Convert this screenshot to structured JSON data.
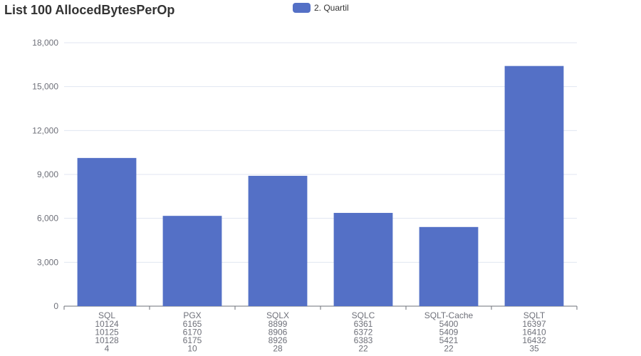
{
  "chart_data": {
    "type": "bar",
    "title": "List 100 AllocedBytesPerOp",
    "series": [
      {
        "name": "2. Quartil",
        "values": [
          10125,
          6170,
          8906,
          6372,
          5409,
          16410
        ]
      }
    ],
    "categories": [
      {
        "name": "SQL",
        "lines": [
          "10124",
          "10125",
          "10128",
          "4"
        ]
      },
      {
        "name": "PGX",
        "lines": [
          "6165",
          "6170",
          "6175",
          "10"
        ]
      },
      {
        "name": "SQLX",
        "lines": [
          "8899",
          "8906",
          "8926",
          "28"
        ]
      },
      {
        "name": "SQLC",
        "lines": [
          "6361",
          "6372",
          "6383",
          "22"
        ]
      },
      {
        "name": "SQLT-Cache",
        "lines": [
          "5400",
          "5409",
          "5421",
          "22"
        ]
      },
      {
        "name": "SQLT",
        "lines": [
          "16397",
          "16410",
          "16432",
          "35"
        ]
      }
    ],
    "y_ticks": [
      "0",
      "3,000",
      "6,000",
      "9,000",
      "12,000",
      "15,000",
      "18,000"
    ],
    "ylim": [
      0,
      18000
    ],
    "grid": true,
    "legend_position": "top-center",
    "bar_color": "#5470c6"
  }
}
